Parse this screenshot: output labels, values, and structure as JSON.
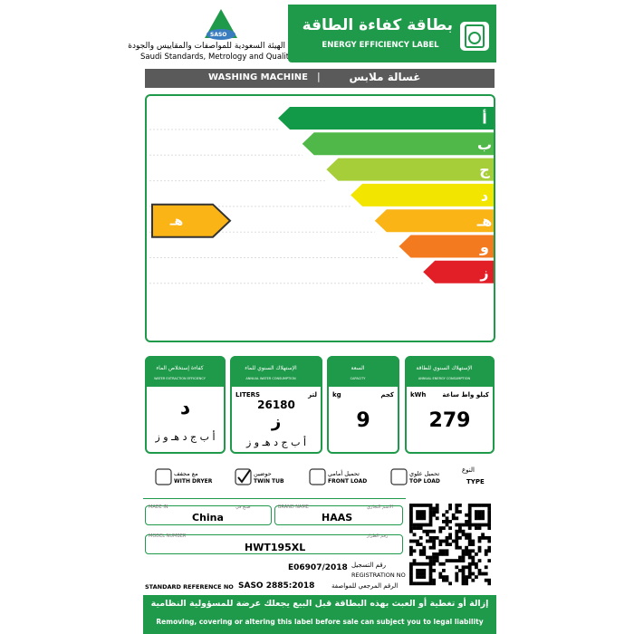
{
  "header": {
    "logo": "SASO",
    "org_ar": "الهيئة السعودية للمواصفات والمقاييس والجودة",
    "org_en": "Saudi Standards, Metrology and Quality Org.",
    "label_ar": "بطاقة كفاءة الطاقة",
    "label_en": "ENERGY EFFICIENCY LABEL"
  },
  "product": {
    "en": "WASHING MACHINE",
    "ar": "غسالة ملابس"
  },
  "scale": {
    "grades": [
      "أ",
      "ب",
      "ج",
      "د",
      "هـ",
      "و",
      "ز"
    ],
    "colors": [
      "#139a48",
      "#50b848",
      "#a6ce39",
      "#f2e600",
      "#fbb416",
      "#f47a20",
      "#e21e26"
    ],
    "rating": "هـ"
  },
  "boxes": [
    {
      "title_ar": "الإستهلاك السنوي للطاقة",
      "title_en": "ANNUAL ENERGY CONSUMPTION",
      "unit_en": "kWh",
      "unit_ar": "كيلو واط ساعة",
      "value": "279"
    },
    {
      "title_ar": "السعة",
      "title_en": "CAPACITY",
      "unit_en": "kg",
      "unit_ar": "كجم",
      "value": "9"
    },
    {
      "title_ar": "الإستهلاك السنوي للماء",
      "title_en": "ANNUAL WATER CONSUMPTION",
      "unit_en": "LITERS",
      "unit_ar": "لتر",
      "value": "26180",
      "grade": "ز",
      "grade_scale": "أ ب ج د هـ و ز"
    },
    {
      "title_ar": "كفاءة إستخلاص الماء",
      "title_en": "WATER EXTRACTION EFFICIENCY",
      "grade": "د",
      "grade_scale": "أ ب ج د هـ و ز"
    }
  ],
  "type": {
    "label_ar": "النوع",
    "label_en": "TYPE",
    "options": [
      {
        "ar": "تحميل علوي",
        "en": "TOP LOAD",
        "checked": false
      },
      {
        "ar": "تحميل أمامي",
        "en": "FRONT LOAD",
        "checked": false
      },
      {
        "ar": "حوضين",
        "en": "TWIN TUB",
        "checked": true
      },
      {
        "ar": "مع مجفف",
        "en": "WITH DRYER",
        "checked": false
      }
    ]
  },
  "fields": {
    "made_in": {
      "en": "MADE IN",
      "ar": "صنع في",
      "value": "China"
    },
    "brand": {
      "en": "BRAND NAME",
      "ar": "الاسم التجاري",
      "value": "HAAS"
    },
    "model": {
      "en": "MODEL NUMBER",
      "ar": "رقم الطراز",
      "value": "HWT195XL"
    },
    "registration": {
      "value": "E06907/2018",
      "ar": "رقم التسجيل",
      "en": "REGISTRATION NO"
    },
    "standard": {
      "en": "STANDARD REFERENCE NO",
      "value": "SASO 2885:2018",
      "ar": "الرقم المرجعي للمواصفة"
    }
  },
  "footer": {
    "ar": "إزالة أو تغطية أو العبث بهذه البطاقة قبل البيع يجعلك عرضة للمسؤولية النظامية",
    "en": "Removing, covering or altering this label before sale can subject you to legal liability"
  }
}
